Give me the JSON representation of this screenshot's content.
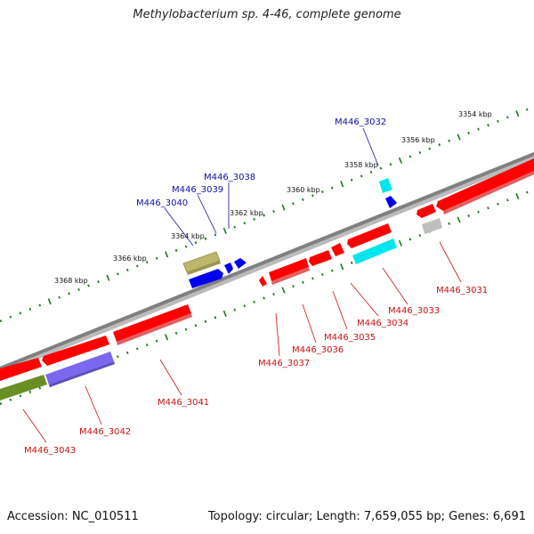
{
  "title": "Methylobacterium sp. 4-46, complete genome",
  "footer": {
    "accession": "Accession: NC_010511",
    "topology": "Topology: circular; Length: 7,659,055 bp; Genes: 6,691"
  },
  "colors": {
    "backbone": "#777777",
    "tick": "#1a7a1a",
    "forward_label": "#1010aa",
    "reverse_label": "#cc1111"
  },
  "scale": {
    "unit": "kbp",
    "ticks": [
      {
        "label": "3354 kbp"
      },
      {
        "label": "3356 kbp"
      },
      {
        "label": "3358 kbp"
      },
      {
        "label": "3360 kbp"
      },
      {
        "label": "3362 kbp"
      },
      {
        "label": "3364 kbp"
      },
      {
        "label": "3366 kbp"
      },
      {
        "label": "3368 kbp"
      }
    ]
  },
  "genes_labeled": [
    {
      "name": "M446_3032",
      "strand": "forward",
      "color": "#00e5ee"
    },
    {
      "name": "M446_3038",
      "strand": "forward",
      "color": "#0000ee"
    },
    {
      "name": "M446_3039",
      "strand": "forward",
      "color": "#0000ee"
    },
    {
      "name": "M446_3040",
      "strand": "forward",
      "color": "#bdb76b"
    },
    {
      "name": "M446_3031",
      "strand": "reverse",
      "color": "#bebebe"
    },
    {
      "name": "M446_3033",
      "strand": "reverse",
      "color": "#00e5ee"
    },
    {
      "name": "M446_3034",
      "strand": "reverse",
      "color": "#ff0000"
    },
    {
      "name": "M446_3035",
      "strand": "reverse",
      "color": "#ff0000"
    },
    {
      "name": "M446_3036",
      "strand": "reverse",
      "color": "#ff0000"
    },
    {
      "name": "M446_3037",
      "strand": "reverse",
      "color": "#ff0000"
    },
    {
      "name": "M446_3041",
      "strand": "reverse",
      "color": "#ff0000"
    },
    {
      "name": "M446_3042",
      "strand": "reverse",
      "color": "#7b68ee"
    },
    {
      "name": "M446_3043",
      "strand": "reverse",
      "color": "#6b8e23"
    }
  ]
}
